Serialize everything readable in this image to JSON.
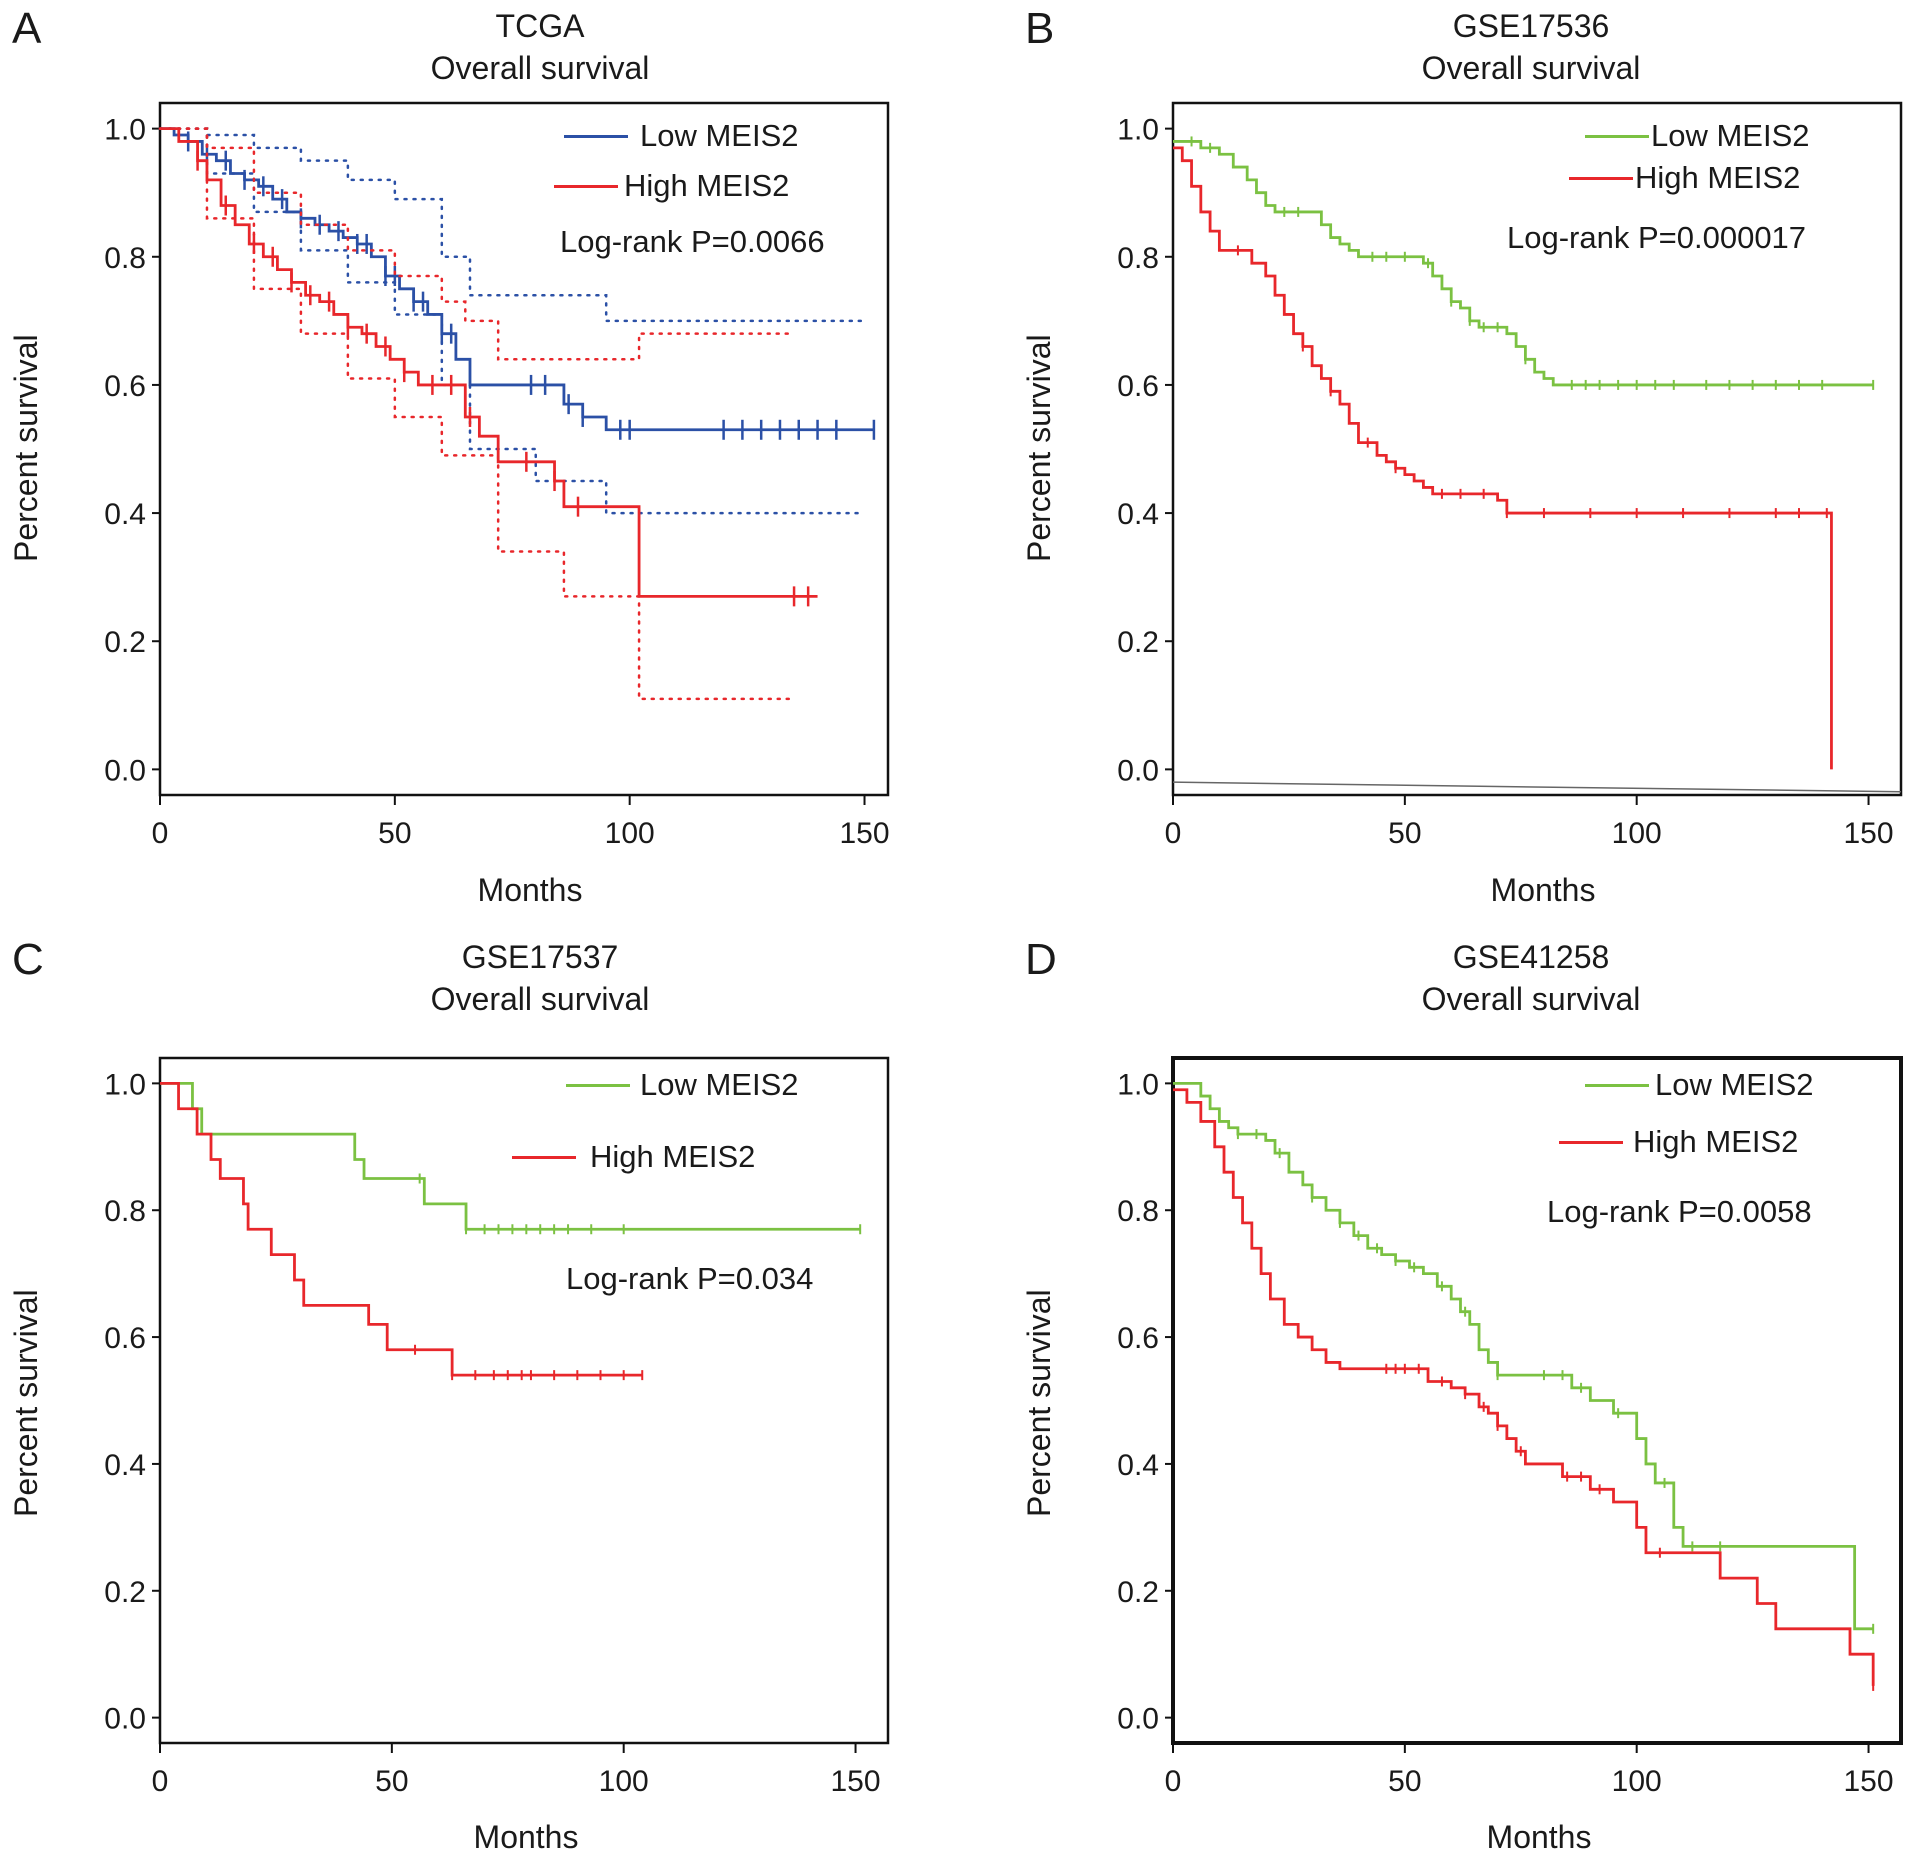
{
  "chart_data": [
    {
      "panel": "A",
      "type": "line",
      "title": "TCGA",
      "subtitle": "Overall survival",
      "xlabel": "Months",
      "ylabel": "Percent survival",
      "xlim": [
        0,
        155
      ],
      "ylim": [
        -0.04,
        1.04
      ],
      "xticks": [
        0,
        50,
        100,
        150
      ],
      "yticks": [
        "0.0",
        "0.2",
        "0.4",
        "0.6",
        "0.8",
        "1.0"
      ],
      "pvalue": "Log-rank P=0.0066",
      "legend": [
        {
          "label": "Low MEIS2",
          "color": "#2b50a6"
        },
        {
          "label": "High MEIS2",
          "color": "#e8272b"
        }
      ],
      "series": [
        {
          "name": "Low MEIS2",
          "color": "#2b50a6",
          "x": [
            0,
            3,
            6,
            9,
            12,
            15,
            18,
            21,
            24,
            27,
            30,
            33,
            36,
            39,
            42,
            45,
            48,
            51,
            54,
            57,
            60,
            63,
            66,
            86,
            90,
            95,
            152
          ],
          "y": [
            1.0,
            0.99,
            0.98,
            0.96,
            0.95,
            0.93,
            0.92,
            0.91,
            0.89,
            0.87,
            0.86,
            0.85,
            0.84,
            0.83,
            0.82,
            0.8,
            0.77,
            0.75,
            0.73,
            0.71,
            0.68,
            0.64,
            0.6,
            0.57,
            0.55,
            0.53,
            0.53
          ],
          "censor_x": [
            6,
            10,
            14,
            18,
            22,
            26,
            30,
            34,
            38,
            42,
            44,
            48,
            50,
            54,
            56,
            60,
            62,
            79,
            82,
            87,
            90,
            98,
            100,
            120,
            124,
            128,
            132,
            136,
            140,
            144,
            152
          ],
          "ci_upper": {
            "x": [
              0,
              10,
              20,
              30,
              40,
              50,
              60,
              66,
              80,
              95,
              150
            ],
            "y": [
              1.0,
              0.99,
              0.97,
              0.95,
              0.92,
              0.89,
              0.8,
              0.74,
              0.74,
              0.7,
              0.7
            ]
          },
          "ci_lower": {
            "x": [
              0,
              10,
              20,
              30,
              40,
              50,
              60,
              66,
              80,
              95,
              150
            ],
            "y": [
              1.0,
              0.93,
              0.87,
              0.81,
              0.76,
              0.71,
              0.6,
              0.5,
              0.45,
              0.4,
              0.4
            ]
          }
        },
        {
          "name": "High MEIS2",
          "color": "#e8272b",
          "x": [
            0,
            4,
            8,
            10,
            13,
            16,
            19,
            22,
            25,
            28,
            31,
            34,
            37,
            40,
            43,
            46,
            49,
            52,
            55,
            65,
            68,
            72,
            84,
            86,
            102,
            140
          ],
          "y": [
            1.0,
            0.98,
            0.95,
            0.92,
            0.88,
            0.85,
            0.82,
            0.8,
            0.78,
            0.76,
            0.74,
            0.73,
            0.71,
            0.69,
            0.68,
            0.66,
            0.64,
            0.62,
            0.6,
            0.55,
            0.52,
            0.48,
            0.45,
            0.41,
            0.27,
            0.27
          ],
          "censor_x": [
            8,
            14,
            20,
            24,
            28,
            32,
            36,
            40,
            44,
            48,
            52,
            58,
            62,
            66,
            78,
            84,
            89,
            135,
            138
          ],
          "ci_upper": {
            "x": [
              0,
              10,
              20,
              30,
              40,
              50,
              60,
              65,
              72,
              86,
              102,
              135
            ],
            "y": [
              1.0,
              0.97,
              0.9,
              0.85,
              0.81,
              0.77,
              0.73,
              0.7,
              0.64,
              0.64,
              0.68,
              0.68
            ]
          },
          "ci_lower": {
            "x": [
              0,
              10,
              20,
              30,
              40,
              50,
              60,
              65,
              72,
              86,
              102,
              135
            ],
            "y": [
              1.0,
              0.86,
              0.75,
              0.68,
              0.61,
              0.55,
              0.49,
              0.49,
              0.34,
              0.27,
              0.11,
              0.11
            ]
          }
        }
      ]
    },
    {
      "panel": "B",
      "type": "line",
      "title": "GSE17536",
      "subtitle": "Overall survival",
      "xlabel": "Months",
      "ylabel": "Percent survival",
      "xlim": [
        0,
        157
      ],
      "ylim": [
        -0.04,
        1.04
      ],
      "xticks": [
        0,
        50,
        100,
        150
      ],
      "yticks": [
        "0.0",
        "0.2",
        "0.4",
        "0.6",
        "0.8",
        "1.0"
      ],
      "pvalue": "Log-rank P=0.000017",
      "legend": [
        {
          "label": "Low MEIS2",
          "color": "#7bc142"
        },
        {
          "label": "High MEIS2",
          "color": "#e8272b"
        }
      ],
      "series": [
        {
          "name": "Low MEIS2",
          "color": "#7bc142",
          "x": [
            0,
            3,
            6,
            10,
            13,
            16,
            18,
            20,
            22,
            30,
            32,
            34,
            36,
            38,
            40,
            52,
            54,
            56,
            58,
            60,
            62,
            64,
            66,
            72,
            74,
            76,
            78,
            80,
            82,
            151
          ],
          "y": [
            0.98,
            0.98,
            0.97,
            0.96,
            0.94,
            0.92,
            0.9,
            0.88,
            0.87,
            0.87,
            0.85,
            0.83,
            0.82,
            0.81,
            0.8,
            0.8,
            0.79,
            0.77,
            0.75,
            0.73,
            0.72,
            0.7,
            0.69,
            0.68,
            0.66,
            0.64,
            0.62,
            0.61,
            0.6,
            0.6
          ],
          "censor_x": [
            4,
            8,
            24,
            27,
            43,
            46,
            50,
            55,
            60,
            64,
            67,
            70,
            76,
            86,
            89,
            92,
            96,
            100,
            104,
            108,
            115,
            120,
            125,
            130,
            135,
            140,
            151
          ]
        },
        {
          "name": "High MEIS2",
          "color": "#e8272b",
          "x": [
            0,
            2,
            4,
            6,
            8,
            10,
            17,
            20,
            22,
            24,
            26,
            28,
            30,
            32,
            34,
            36,
            38,
            40,
            44,
            46,
            48,
            50,
            52,
            54,
            56,
            58,
            62,
            68,
            70,
            72,
            142,
            142
          ],
          "y": [
            0.97,
            0.95,
            0.91,
            0.87,
            0.84,
            0.81,
            0.79,
            0.77,
            0.74,
            0.71,
            0.68,
            0.66,
            0.63,
            0.61,
            0.59,
            0.57,
            0.54,
            0.51,
            0.49,
            0.48,
            0.47,
            0.46,
            0.45,
            0.44,
            0.43,
            0.43,
            0.43,
            0.43,
            0.42,
            0.4,
            0.4,
            0.0
          ],
          "censor_x": [
            14,
            28,
            34,
            42,
            48,
            58,
            62,
            67,
            72,
            80,
            90,
            100,
            110,
            120,
            130,
            135,
            141
          ]
        }
      ]
    },
    {
      "panel": "C",
      "type": "line",
      "title": "GSE17537",
      "subtitle": "Overall survival",
      "xlabel": "Months",
      "ylabel": "Percent survival",
      "xlim": [
        0,
        157
      ],
      "ylim": [
        -0.04,
        1.04
      ],
      "xticks": [
        0,
        50,
        100,
        150
      ],
      "yticks": [
        "0.0",
        "0.2",
        "0.4",
        "0.6",
        "0.8",
        "1.0"
      ],
      "pvalue": "Log-rank P=0.034",
      "legend": [
        {
          "label": "Low MEIS2",
          "color": "#7bc142"
        },
        {
          "label": "High MEIS2",
          "color": "#e8272b"
        }
      ],
      "series": [
        {
          "name": "Low MEIS2",
          "color": "#7bc142",
          "x": [
            0,
            7,
            9,
            42,
            44,
            55,
            57,
            64,
            66,
            151
          ],
          "y": [
            1.0,
            0.96,
            0.92,
            0.88,
            0.85,
            0.85,
            0.81,
            0.81,
            0.77,
            0.77
          ],
          "censor_x": [
            56,
            66,
            70,
            73,
            76,
            79,
            82,
            85,
            88,
            93,
            100,
            151
          ]
        },
        {
          "name": "High MEIS2",
          "color": "#e8272b",
          "x": [
            0,
            4,
            8,
            11,
            13,
            18,
            19,
            23,
            24,
            29,
            31,
            45,
            47,
            49,
            50,
            62,
            63,
            104
          ],
          "y": [
            1.0,
            0.96,
            0.92,
            0.88,
            0.85,
            0.81,
            0.77,
            0.77,
            0.73,
            0.69,
            0.65,
            0.62,
            0.62,
            0.58,
            0.58,
            0.58,
            0.54,
            0.54
          ],
          "censor_x": [
            55,
            63,
            68,
            72,
            75,
            78,
            80,
            85,
            90,
            95,
            100,
            104
          ]
        }
      ]
    },
    {
      "panel": "D",
      "type": "line",
      "title": "GSE41258",
      "subtitle": "Overall survival",
      "xlabel": "Months",
      "ylabel": "Percent survival",
      "xlim": [
        0,
        157
      ],
      "ylim": [
        -0.04,
        1.04
      ],
      "xticks": [
        0,
        50,
        100,
        150
      ],
      "yticks": [
        "0.0",
        "0.2",
        "0.4",
        "0.6",
        "0.8",
        "1.0"
      ],
      "pvalue": "Log-rank P=0.0058",
      "legend": [
        {
          "label": "Low MEIS2",
          "color": "#7bc142"
        },
        {
          "label": "High MEIS2",
          "color": "#e8272b"
        }
      ],
      "series": [
        {
          "name": "Low MEIS2",
          "color": "#7bc142",
          "x": [
            0,
            6,
            8,
            10,
            12,
            14,
            20,
            22,
            25,
            28,
            30,
            33,
            36,
            39,
            42,
            45,
            48,
            51,
            54,
            57,
            60,
            62,
            64,
            66,
            68,
            70,
            72,
            86,
            90,
            95,
            100,
            102,
            104,
            108,
            110,
            145,
            147,
            151
          ],
          "y": [
            1.0,
            0.98,
            0.96,
            0.94,
            0.93,
            0.92,
            0.91,
            0.89,
            0.86,
            0.84,
            0.82,
            0.8,
            0.78,
            0.76,
            0.74,
            0.73,
            0.72,
            0.71,
            0.7,
            0.68,
            0.66,
            0.64,
            0.62,
            0.58,
            0.56,
            0.54,
            0.54,
            0.52,
            0.5,
            0.48,
            0.44,
            0.4,
            0.37,
            0.3,
            0.27,
            0.27,
            0.14,
            0.14
          ],
          "censor_x": [
            14,
            18,
            23,
            30,
            36,
            40,
            44,
            48,
            52,
            58,
            63,
            70,
            80,
            84,
            88,
            96,
            106,
            112,
            118,
            151
          ]
        },
        {
          "name": "High MEIS2",
          "color": "#e8272b",
          "x": [
            0,
            3,
            6,
            9,
            11,
            13,
            15,
            17,
            19,
            21,
            24,
            27,
            30,
            33,
            36,
            40,
            50,
            55,
            60,
            63,
            66,
            68,
            70,
            72,
            74,
            76,
            80,
            84,
            90,
            95,
            100,
            102,
            106,
            112,
            118,
            126,
            130,
            146,
            151
          ],
          "y": [
            0.99,
            0.97,
            0.94,
            0.9,
            0.86,
            0.82,
            0.78,
            0.74,
            0.7,
            0.66,
            0.62,
            0.6,
            0.58,
            0.56,
            0.55,
            0.55,
            0.55,
            0.53,
            0.52,
            0.51,
            0.49,
            0.48,
            0.46,
            0.44,
            0.42,
            0.4,
            0.4,
            0.38,
            0.36,
            0.34,
            0.3,
            0.26,
            0.26,
            0.26,
            0.22,
            0.18,
            0.14,
            0.1,
            0.05
          ],
          "censor_x": [
            46,
            48,
            50,
            53,
            58,
            63,
            67,
            70,
            75,
            85,
            88,
            92,
            105,
            151
          ]
        }
      ]
    }
  ]
}
